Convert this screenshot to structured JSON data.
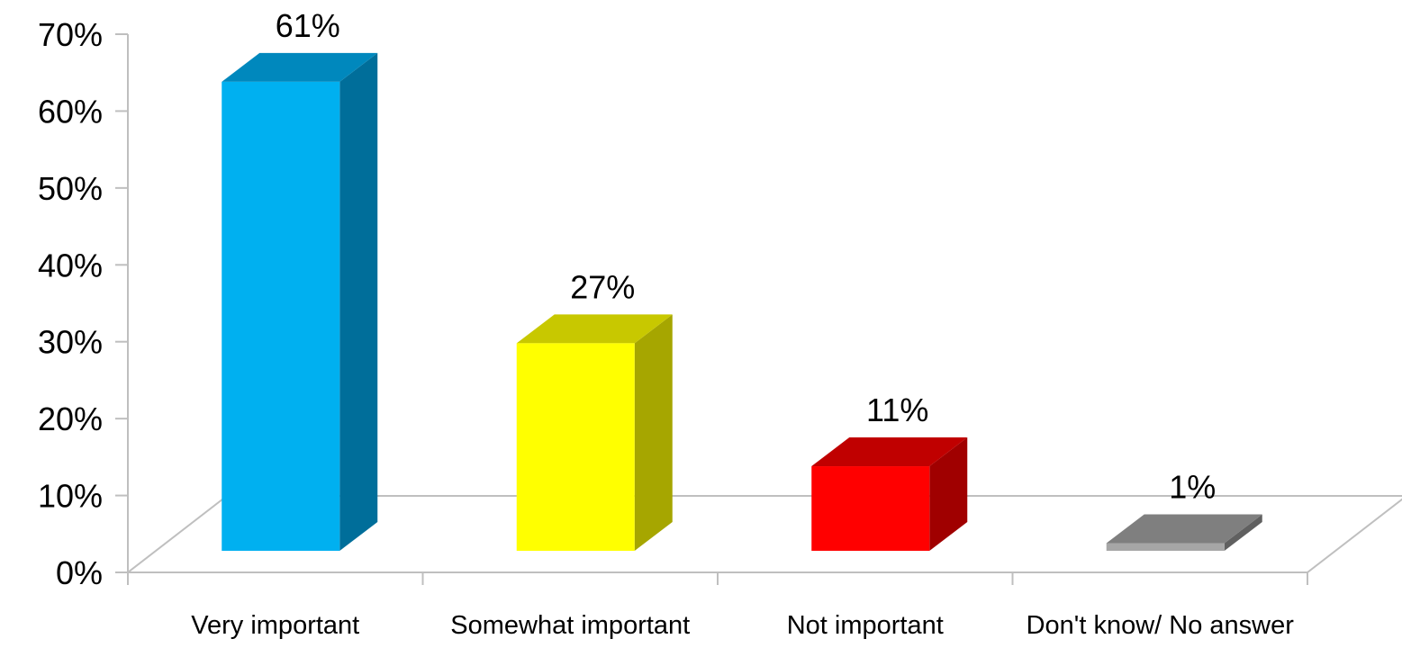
{
  "chart_data": {
    "type": "bar",
    "style": "3d",
    "categories": [
      "Very important",
      "Somewhat important",
      "Not important",
      "Don't know/ No answer"
    ],
    "values": [
      61,
      27,
      11,
      1
    ],
    "value_labels": [
      "61%",
      "27%",
      "11%",
      "1%"
    ],
    "ylim": [
      0,
      70
    ],
    "y_ticks": [
      0,
      10,
      20,
      30,
      40,
      50,
      60,
      70
    ],
    "y_tick_labels": [
      "0%",
      "10%",
      "20%",
      "30%",
      "40%",
      "50%",
      "60%",
      "70%"
    ],
    "grid": false,
    "legend": "none",
    "bar_colors": [
      {
        "front": "#00B0F0",
        "side": "#006E9A",
        "top": "#0088BD"
      },
      {
        "front": "#FFFF00",
        "side": "#A6A600",
        "top": "#C8C800"
      },
      {
        "front": "#FF0000",
        "side": "#A00000",
        "top": "#C00000"
      },
      {
        "front": "#A6A6A6",
        "side": "#606060",
        "top": "#7F7F7F"
      }
    ]
  }
}
